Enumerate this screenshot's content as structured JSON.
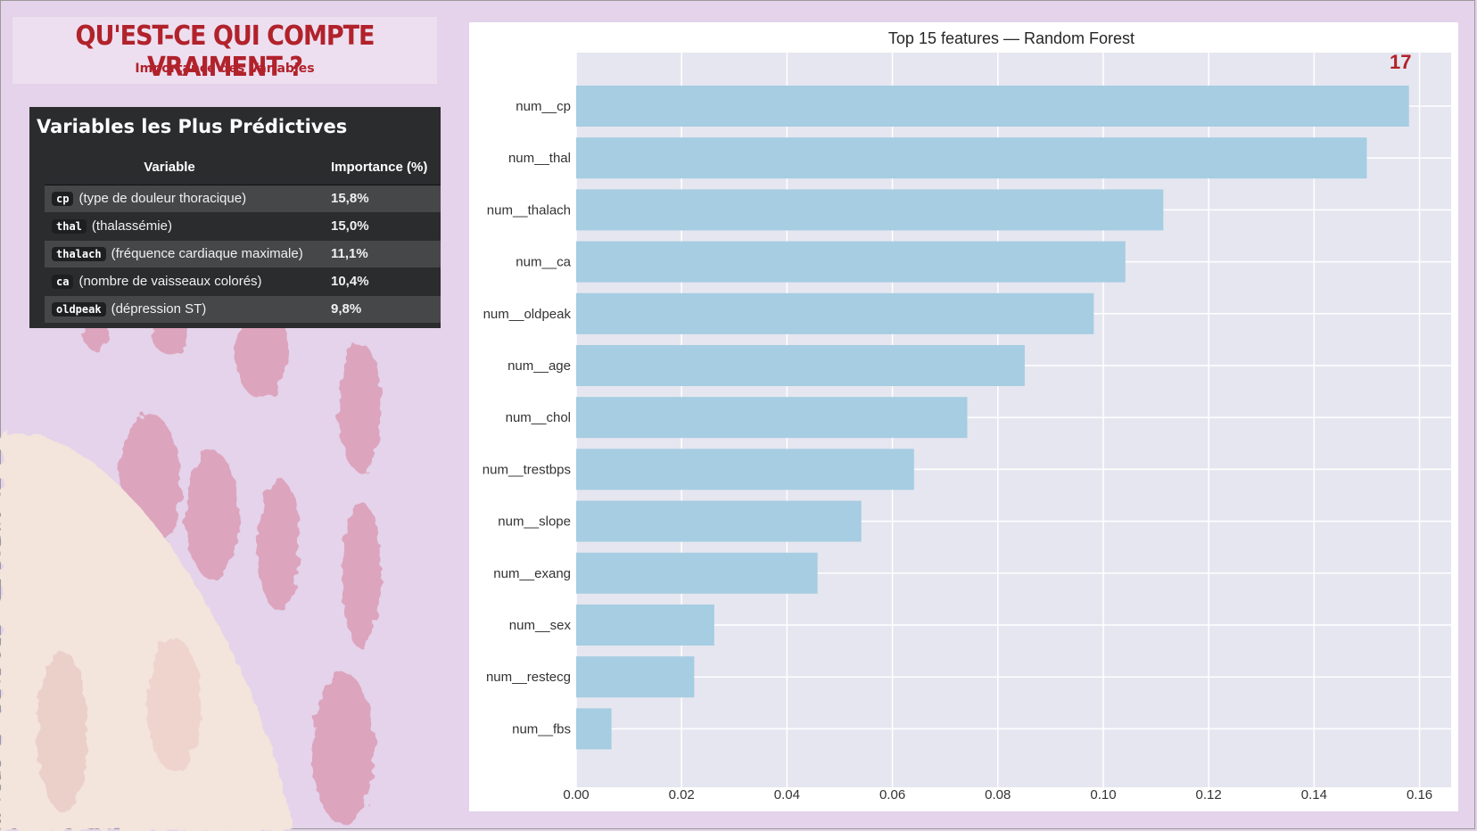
{
  "header": {
    "title": "QU'EST-CE QUI COMPTE VRAIMENT ?",
    "subtitle": "Importance des Variables"
  },
  "table": {
    "title": "Variables les Plus Prédictives",
    "col_variable": "Variable",
    "col_importance": "Importance (%)",
    "rows": [
      {
        "code": "cp",
        "desc": "(type de douleur thoracique)",
        "importance": "15,8%"
      },
      {
        "code": "thal",
        "desc": "(thalassémie)",
        "importance": "15,0%"
      },
      {
        "code": "thalach",
        "desc": "(fréquence cardiaque maximale)",
        "importance": "11,1%"
      },
      {
        "code": "ca",
        "desc": "(nombre de vaisseaux colorés)",
        "importance": "10,4%"
      },
      {
        "code": "oldpeak",
        "desc": "(dépression ST)",
        "importance": "9,8%"
      }
    ]
  },
  "page_number": "17",
  "colors": {
    "accent": "#b1222b",
    "bar": "#a6cde2",
    "plot_bg": "#e6e6f0",
    "table_bg": "#2b2c2e"
  },
  "chart_data": {
    "type": "bar",
    "orientation": "horizontal",
    "title": "Top 15 features — Random Forest",
    "xlabel": "",
    "ylabel": "",
    "categories": [
      "num__cp",
      "num__thal",
      "num__thalach",
      "num__ca",
      "num__oldpeak",
      "num__age",
      "num__chol",
      "num__trestbps",
      "num__slope",
      "num__exang",
      "num__sex",
      "num__restecg",
      "num__fbs"
    ],
    "values": [
      0.158,
      0.15,
      0.1114,
      0.1042,
      0.0982,
      0.0851,
      0.0742,
      0.0641,
      0.0541,
      0.0458,
      0.0262,
      0.0224,
      0.0067
    ],
    "xlim": [
      0,
      0.166
    ],
    "xticks": [
      "0.00",
      "0.02",
      "0.04",
      "0.06",
      "0.08",
      "0.10",
      "0.12",
      "0.14",
      "0.16"
    ],
    "grid": true
  }
}
